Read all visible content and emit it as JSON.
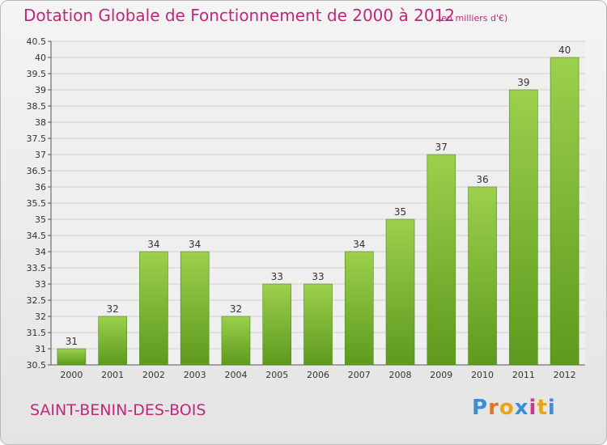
{
  "header": {
    "title": "Dotation Globale de Fonctionnement de 2000 à 2012",
    "unit_note": "(en milliers d'€)"
  },
  "footer": {
    "commune": "SAINT-BENIN-DES-BOIS",
    "brand_letters": [
      "P",
      "r",
      "o",
      "x",
      "i",
      "t",
      "i"
    ],
    "brand_colors": [
      "#3a8fd8",
      "#e8731c",
      "#e8a51c",
      "#3a8fd8",
      "#c63b8a",
      "#e8a51c",
      "#3a8fd8"
    ]
  },
  "colors": {
    "title": "#c0287a",
    "bar_light": "#9cd04c",
    "bar_dark": "#5e9a1e",
    "grid": "#d2d2d2"
  },
  "chart_data": {
    "type": "bar",
    "title": "Dotation Globale de Fonctionnement de 2000 à 2012",
    "subtitle": "(en milliers d'€)",
    "categories": [
      "2000",
      "2001",
      "2002",
      "2003",
      "2004",
      "2005",
      "2006",
      "2007",
      "2008",
      "2009",
      "2010",
      "2011",
      "2012"
    ],
    "values": [
      31,
      32,
      34,
      34,
      32,
      33,
      33,
      34,
      35,
      37,
      36,
      39,
      40
    ],
    "data_labels": [
      "31",
      "32",
      "34",
      "34",
      "32",
      "33",
      "33",
      "34",
      "35",
      "37",
      "36",
      "39",
      "40"
    ],
    "ylim": [
      30.5,
      40.5
    ],
    "yticks": [
      "30.5",
      "31",
      "31.5",
      "32",
      "32.5",
      "33",
      "33.5",
      "34",
      "34.5",
      "35",
      "35.5",
      "36",
      "36.5",
      "37",
      "37.5",
      "38",
      "38.5",
      "39",
      "39.5",
      "40",
      "40.5"
    ],
    "xlabel": "",
    "ylabel": "",
    "grid": true,
    "legend": "none"
  }
}
